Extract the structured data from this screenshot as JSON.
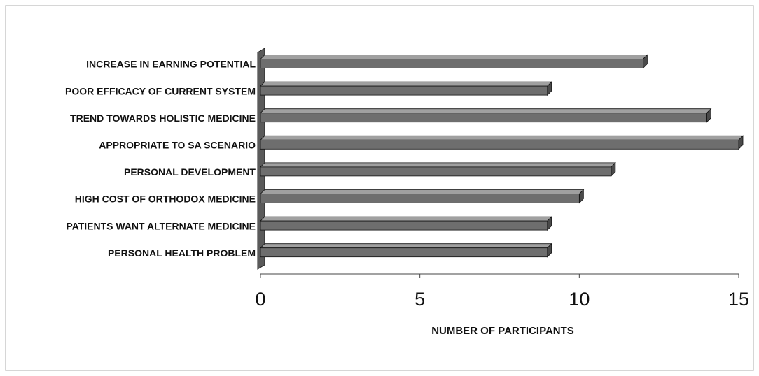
{
  "chart_data": {
    "type": "bar",
    "orientation": "horizontal",
    "categories": [
      "INCREASE IN EARNING POTENTIAL",
      "POOR EFFICACY OF CURRENT SYSTEM",
      "TREND TOWARDS HOLISTIC MEDICINE",
      "APPROPRIATE TO SA SCENARIO",
      "PERSONAL DEVELOPMENT",
      "HIGH COST OF ORTHODOX MEDICINE",
      "PATIENTS WANT ALTERNATE MEDICINE",
      "PERSONAL HEALTH PROBLEM"
    ],
    "values": [
      12,
      9,
      14,
      15,
      11,
      10,
      9,
      9
    ],
    "color": "#6e6e6e",
    "xlim": [
      0,
      15
    ],
    "xticks": [
      0,
      5,
      10,
      15
    ],
    "x_label": "NUMBER OF PARTICIPANTS"
  }
}
